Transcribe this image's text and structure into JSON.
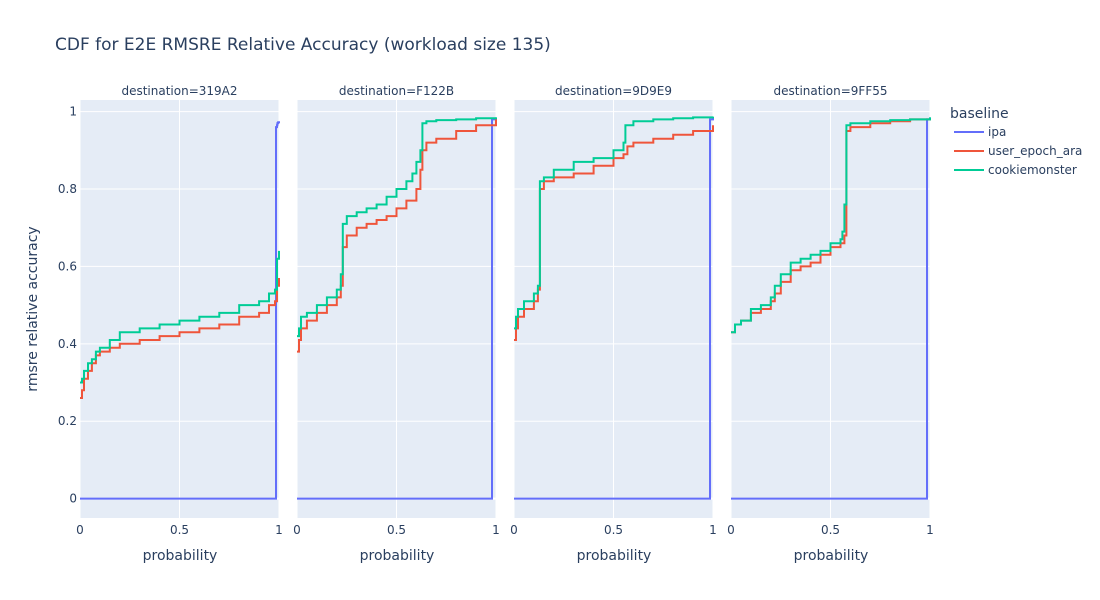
{
  "chart_data": {
    "type": "line",
    "title": "CDF for E2E RMSRE Relative Accuracy (workload size 135)",
    "xlabel": "probability",
    "ylabel": "rmsre relative accuracy",
    "xlim": [
      0,
      1
    ],
    "ylim": [
      -0.05,
      1.03
    ],
    "x_ticks": [
      "0",
      "0.5",
      "1"
    ],
    "y_ticks": [
      "0",
      "0.2",
      "0.4",
      "0.6",
      "0.8",
      "1"
    ],
    "legend_title": "baseline",
    "legend_position": "right",
    "grid": true,
    "colors": {
      "ipa": "#636efa",
      "user_epoch_ara": "#ef553b",
      "cookiemonster": "#00cc96",
      "plot_bg": "#e5ecf6",
      "grid": "#ffffff",
      "text": "#2a3f5f"
    },
    "series_names": [
      "ipa",
      "user_epoch_ara",
      "cookiemonster"
    ],
    "facets": [
      {
        "title": "destination=319A2",
        "series": [
          {
            "name": "ipa",
            "x": [
              0,
              0.985,
              0.985,
              0.99,
              0.992,
              0.995,
              1.0
            ],
            "y": [
              0,
              0,
              0.96,
              0.965,
              0.97,
              0.972,
              0.975
            ]
          },
          {
            "name": "user_epoch_ara",
            "x": [
              0,
              0.01,
              0.02,
              0.04,
              0.06,
              0.08,
              0.1,
              0.15,
              0.2,
              0.3,
              0.4,
              0.5,
              0.6,
              0.7,
              0.8,
              0.9,
              0.95,
              0.98,
              0.99,
              1.0
            ],
            "y": [
              0.26,
              0.28,
              0.31,
              0.33,
              0.35,
              0.37,
              0.38,
              0.39,
              0.4,
              0.41,
              0.42,
              0.43,
              0.44,
              0.45,
              0.47,
              0.48,
              0.5,
              0.51,
              0.55,
              0.57
            ]
          },
          {
            "name": "cookiemonster",
            "x": [
              0,
              0.01,
              0.02,
              0.04,
              0.06,
              0.08,
              0.1,
              0.15,
              0.2,
              0.3,
              0.4,
              0.5,
              0.6,
              0.7,
              0.8,
              0.9,
              0.95,
              0.98,
              0.99,
              1.0
            ],
            "y": [
              0.3,
              0.31,
              0.33,
              0.35,
              0.36,
              0.38,
              0.39,
              0.41,
              0.43,
              0.44,
              0.45,
              0.46,
              0.47,
              0.48,
              0.5,
              0.51,
              0.53,
              0.54,
              0.62,
              0.64
            ]
          }
        ]
      },
      {
        "title": "destination=F122B",
        "series": [
          {
            "name": "ipa",
            "x": [
              0,
              0.98,
              0.98,
              1.0
            ],
            "y": [
              0,
              0,
              0.98,
              0.985
            ]
          },
          {
            "name": "user_epoch_ara",
            "x": [
              0,
              0.01,
              0.02,
              0.05,
              0.1,
              0.15,
              0.2,
              0.22,
              0.23,
              0.25,
              0.3,
              0.35,
              0.4,
              0.45,
              0.5,
              0.55,
              0.6,
              0.62,
              0.63,
              0.65,
              0.7,
              0.8,
              0.9,
              1.0
            ],
            "y": [
              0.38,
              0.41,
              0.44,
              0.46,
              0.48,
              0.5,
              0.52,
              0.55,
              0.65,
              0.68,
              0.7,
              0.71,
              0.72,
              0.73,
              0.75,
              0.77,
              0.8,
              0.85,
              0.9,
              0.92,
              0.93,
              0.95,
              0.965,
              0.98
            ]
          },
          {
            "name": "cookiemonster",
            "x": [
              0,
              0.01,
              0.02,
              0.05,
              0.1,
              0.15,
              0.2,
              0.22,
              0.23,
              0.25,
              0.3,
              0.35,
              0.4,
              0.45,
              0.5,
              0.55,
              0.58,
              0.6,
              0.62,
              0.63,
              0.65,
              0.7,
              0.8,
              0.9,
              1.0
            ],
            "y": [
              0.42,
              0.44,
              0.47,
              0.48,
              0.5,
              0.52,
              0.54,
              0.58,
              0.71,
              0.73,
              0.74,
              0.75,
              0.76,
              0.78,
              0.8,
              0.82,
              0.84,
              0.87,
              0.9,
              0.97,
              0.975,
              0.978,
              0.98,
              0.983,
              0.985
            ]
          }
        ]
      },
      {
        "title": "destination=9D9E9",
        "series": [
          {
            "name": "ipa",
            "x": [
              0,
              0.985,
              0.985,
              1.0
            ],
            "y": [
              0,
              0,
              0.98,
              0.985
            ]
          },
          {
            "name": "user_epoch_ara",
            "x": [
              0,
              0.01,
              0.02,
              0.05,
              0.1,
              0.12,
              0.13,
              0.15,
              0.2,
              0.3,
              0.4,
              0.5,
              0.55,
              0.57,
              0.6,
              0.7,
              0.8,
              0.9,
              1.0
            ],
            "y": [
              0.41,
              0.44,
              0.47,
              0.49,
              0.51,
              0.54,
              0.8,
              0.82,
              0.83,
              0.84,
              0.86,
              0.88,
              0.89,
              0.91,
              0.92,
              0.93,
              0.94,
              0.95,
              0.965
            ]
          },
          {
            "name": "cookiemonster",
            "x": [
              0,
              0.01,
              0.02,
              0.05,
              0.1,
              0.12,
              0.13,
              0.15,
              0.2,
              0.3,
              0.4,
              0.5,
              0.55,
              0.56,
              0.6,
              0.7,
              0.8,
              0.9,
              1.0
            ],
            "y": [
              0.44,
              0.47,
              0.49,
              0.51,
              0.53,
              0.55,
              0.82,
              0.83,
              0.85,
              0.87,
              0.88,
              0.9,
              0.92,
              0.965,
              0.975,
              0.98,
              0.983,
              0.985,
              0.987
            ]
          }
        ]
      },
      {
        "title": "destination=9FF55",
        "series": [
          {
            "name": "ipa",
            "x": [
              0,
              0.985,
              0.985,
              1.0
            ],
            "y": [
              0,
              0,
              0.98,
              0.985
            ]
          },
          {
            "name": "user_epoch_ara",
            "x": [
              0,
              0.02,
              0.05,
              0.1,
              0.15,
              0.2,
              0.22,
              0.25,
              0.3,
              0.35,
              0.4,
              0.45,
              0.5,
              0.55,
              0.57,
              0.58,
              0.6,
              0.7,
              0.8,
              0.9,
              1.0
            ],
            "y": [
              0.43,
              0.45,
              0.46,
              0.48,
              0.49,
              0.51,
              0.53,
              0.56,
              0.59,
              0.6,
              0.61,
              0.63,
              0.65,
              0.66,
              0.68,
              0.95,
              0.96,
              0.97,
              0.975,
              0.98,
              0.983
            ]
          },
          {
            "name": "cookiemonster",
            "x": [
              0,
              0.02,
              0.05,
              0.1,
              0.15,
              0.2,
              0.22,
              0.25,
              0.3,
              0.35,
              0.4,
              0.45,
              0.5,
              0.55,
              0.56,
              0.57,
              0.58,
              0.6,
              0.7,
              0.8,
              0.9,
              1.0
            ],
            "y": [
              0.43,
              0.45,
              0.46,
              0.49,
              0.5,
              0.52,
              0.55,
              0.58,
              0.61,
              0.62,
              0.63,
              0.64,
              0.66,
              0.67,
              0.69,
              0.76,
              0.965,
              0.97,
              0.975,
              0.978,
              0.98,
              0.985
            ]
          }
        ]
      }
    ]
  }
}
